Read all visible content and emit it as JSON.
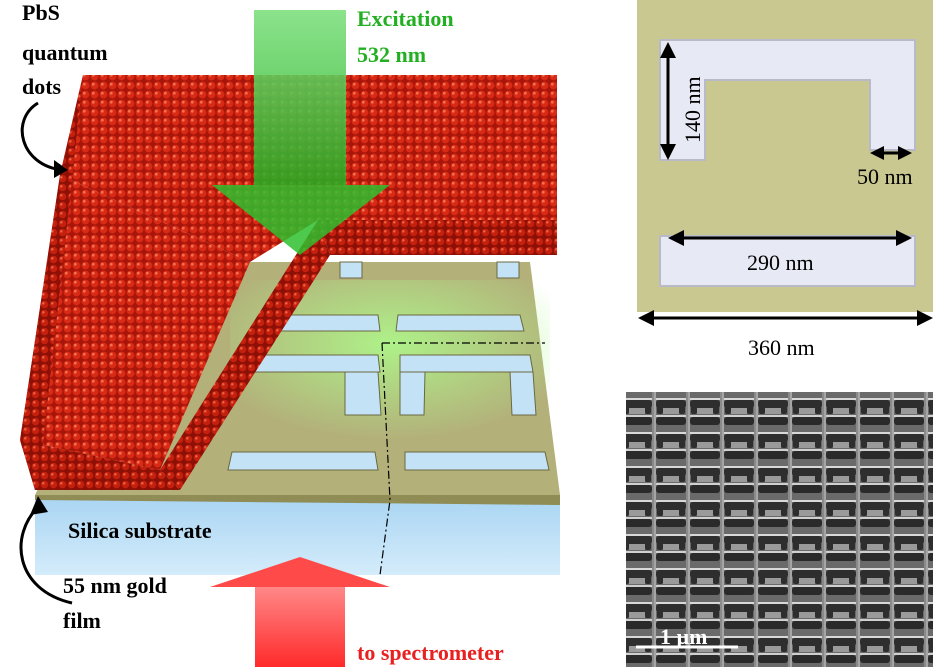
{
  "labels": {
    "pbs_quantum_dots": [
      "PbS",
      "quantum",
      "dots"
    ],
    "excitation": [
      "Excitation",
      "532 nm"
    ],
    "silica_substrate": "Silica substrate",
    "gold_film": [
      "55 nm gold",
      "film"
    ],
    "to_spectrometer": "to spectrometer"
  },
  "unit_cell": {
    "height_dim": "140 nm",
    "arm_width_dim": "50 nm",
    "bar_length_dim": "290 nm",
    "period_dim": "360 nm"
  },
  "sem": {
    "scale_bar": "1 µm"
  },
  "colors": {
    "quantum_dots": "#c81a0a",
    "gold": "#b3b07a",
    "silica": "#b8dcf5",
    "excitation_arrow": "#2ec02e",
    "output_arrow": "#ff3a3a",
    "green_text": "#22b022",
    "red_text": "#e82020"
  }
}
